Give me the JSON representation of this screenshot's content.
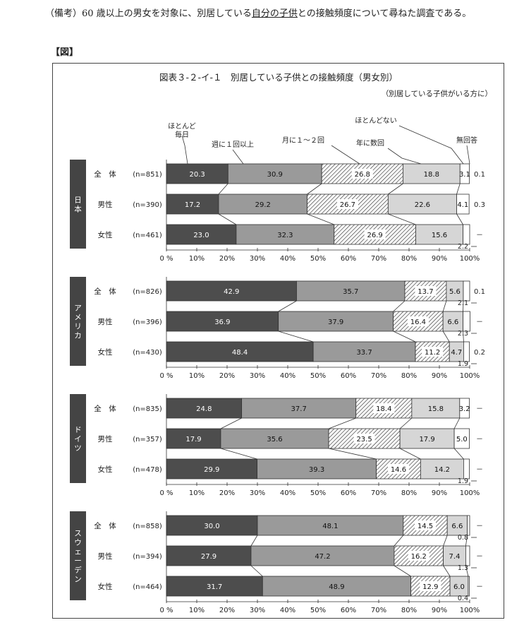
{
  "note": {
    "prefix": "（備考）60 歳以上の男女を対象に、別居している",
    "underlined": "自分の子供",
    "suffix": "との接触頻度について尋ねた調査である。"
  },
  "figure_label": "【図】",
  "chart_data": {
    "type": "bar",
    "stacked": "horizontal-100%",
    "title": "図表３-２-イ-１　別居している子供との接触頻度（男女別）",
    "subtitle": "（別居している子供がいる方に）",
    "categories_labels": [
      "ほとんど毎日",
      "週に１回以上",
      "月に１～２回",
      "年に数回",
      "ほとんどない",
      "無回答"
    ],
    "category_colors": [
      "#4d4d4d",
      "#9a9a9a",
      "hatch",
      "#d6d6d6",
      "#ffffff",
      "#ffffff"
    ],
    "x_ticks": [
      "0 %",
      "10%",
      "20%",
      "30%",
      "40%",
      "50%",
      "60%",
      "70%",
      "80%",
      "90%",
      "100%"
    ],
    "xlim": [
      0,
      100
    ],
    "groups": [
      {
        "country": "日本",
        "rows": [
          {
            "label": "全　体",
            "n": "(n=851)",
            "values": [
              20.3,
              30.9,
              26.8,
              18.8,
              3.1,
              0.1
            ],
            "labels": [
              "20.3",
              "30.9",
              "26.8",
              "18.8",
              "3.1",
              "0.1"
            ]
          },
          {
            "label": "男性",
            "n": "(n=390)",
            "values": [
              17.2,
              29.2,
              26.7,
              22.6,
              4.1,
              0.3
            ],
            "labels": [
              "17.2",
              "29.2",
              "26.7",
              "22.6",
              "4.1",
              "0.3"
            ]
          },
          {
            "label": "女性",
            "n": "(n=461)",
            "values": [
              23.0,
              32.3,
              26.9,
              15.6,
              2.2,
              0.0
            ],
            "labels": [
              "23.0",
              "32.3",
              "26.9",
              "15.6",
              "2.2",
              "－"
            ]
          }
        ]
      },
      {
        "country": "アメリカ",
        "rows": [
          {
            "label": "全　体",
            "n": "(n=826)",
            "values": [
              42.9,
              35.7,
              13.7,
              5.6,
              2.1,
              0.1
            ],
            "labels": [
              "42.9",
              "35.7",
              "13.7",
              "5.6",
              "2.1",
              "0.1"
            ]
          },
          {
            "label": "男性",
            "n": "(n=396)",
            "values": [
              36.9,
              37.9,
              16.4,
              6.6,
              2.3,
              0.0
            ],
            "labels": [
              "36.9",
              "37.9",
              "16.4",
              "6.6",
              "2.3",
              "－"
            ]
          },
          {
            "label": "女性",
            "n": "(n=430)",
            "values": [
              48.4,
              33.7,
              11.2,
              4.7,
              1.9,
              0.2
            ],
            "labels": [
              "48.4",
              "33.7",
              "11.2",
              "4.7",
              "1.9",
              "0.2"
            ]
          }
        ]
      },
      {
        "country": "ドイツ",
        "rows": [
          {
            "label": "全　体",
            "n": "(n=835)",
            "values": [
              24.8,
              37.7,
              18.4,
              15.8,
              3.2,
              0.0
            ],
            "labels": [
              "24.8",
              "37.7",
              "18.4",
              "15.8",
              "3.2",
              "－"
            ]
          },
          {
            "label": "男性",
            "n": "(n=357)",
            "values": [
              17.9,
              35.6,
              23.5,
              17.9,
              5.0,
              0.0
            ],
            "labels": [
              "17.9",
              "35.6",
              "23.5",
              "17.9",
              "5.0",
              "－"
            ]
          },
          {
            "label": "女性",
            "n": "(n=478)",
            "values": [
              29.9,
              39.3,
              14.6,
              14.2,
              1.9,
              0.0
            ],
            "labels": [
              "29.9",
              "39.3",
              "14.6",
              "14.2",
              "1.9",
              "－"
            ]
          }
        ]
      },
      {
        "country": "スウェーデン",
        "rows": [
          {
            "label": "全　体",
            "n": "(n=858)",
            "values": [
              30.0,
              48.1,
              14.5,
              6.6,
              0.8,
              0.0
            ],
            "labels": [
              "30.0",
              "48.1",
              "14.5",
              "6.6",
              "0.8",
              "－"
            ]
          },
          {
            "label": "男性",
            "n": "(n=394)",
            "values": [
              27.9,
              47.2,
              16.2,
              7.4,
              1.3,
              0.0
            ],
            "labels": [
              "27.9",
              "47.2",
              "16.2",
              "7.4",
              "1.3",
              "－"
            ]
          },
          {
            "label": "女性",
            "n": "(n=464)",
            "values": [
              31.7,
              48.9,
              12.9,
              6.0,
              0.4,
              0.0
            ],
            "labels": [
              "31.7",
              "48.9",
              "12.9",
              "6.0",
              "0.4",
              "－"
            ]
          }
        ]
      }
    ]
  }
}
